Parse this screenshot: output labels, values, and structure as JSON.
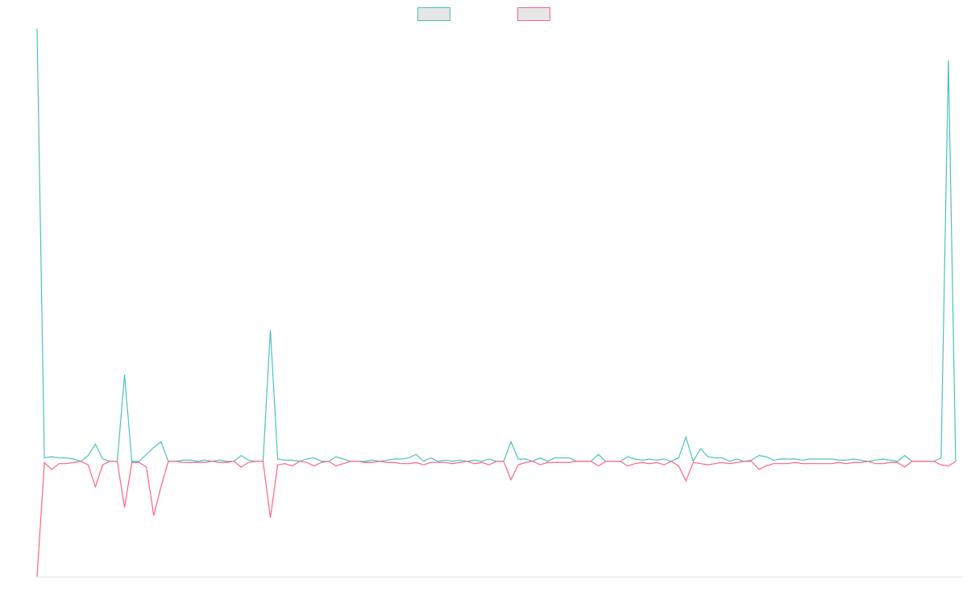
{
  "chart_data": {
    "type": "line",
    "title": "",
    "xlabel": "",
    "ylabel": "",
    "legend_position": "top-center",
    "grid": false,
    "x_range": [
      0,
      127
    ],
    "ylim": [
      -1.0,
      3.75
    ],
    "series": [
      {
        "color": "#4bc0c0",
        "fill": "#e6e6e6",
        "values": [
          3.75,
          0.03,
          0.04,
          0.03,
          0.03,
          0.02,
          0.0,
          0.05,
          0.15,
          0.02,
          0.0,
          0.0,
          0.75,
          0.0,
          0.0,
          0.06,
          0.12,
          0.17,
          0.0,
          0.0,
          0.01,
          0.01,
          0.0,
          0.01,
          0.0,
          0.01,
          0.0,
          0.0,
          0.05,
          0.01,
          0.0,
          0.0,
          1.14,
          0.02,
          0.01,
          0.01,
          0.0,
          0.02,
          0.03,
          0.0,
          0.0,
          0.04,
          0.02,
          0.0,
          0.0,
          0.0,
          0.01,
          0.0,
          0.01,
          0.02,
          0.02,
          0.03,
          0.06,
          0.0,
          0.03,
          0.0,
          0.01,
          0.0,
          0.01,
          0.0,
          0.01,
          0.0,
          0.02,
          0.0,
          0.0,
          0.17,
          0.02,
          0.02,
          0.0,
          0.03,
          0.0,
          0.03,
          0.03,
          0.03,
          0.0,
          0.0,
          0.0,
          0.06,
          0.0,
          0.0,
          0.0,
          0.04,
          0.02,
          0.01,
          0.02,
          0.01,
          0.02,
          0.0,
          0.03,
          0.21,
          0.0,
          0.11,
          0.04,
          0.03,
          0.03,
          0.0,
          0.02,
          0.0,
          0.01,
          0.05,
          0.04,
          0.01,
          0.02,
          0.02,
          0.02,
          0.01,
          0.02,
          0.02,
          0.02,
          0.02,
          0.01,
          0.01,
          0.02,
          0.01,
          0.0,
          0.01,
          0.02,
          0.01,
          0.0,
          0.05,
          0.0,
          0.0,
          0.0,
          0.0,
          0.03,
          3.48,
          0.0
        ]
      },
      {
        "color": "#ff6384",
        "fill": "#e6e6e6",
        "values": [
          -1.0,
          -0.01,
          -0.07,
          -0.02,
          -0.02,
          -0.01,
          0.0,
          -0.03,
          -0.22,
          -0.03,
          0.0,
          0.0,
          -0.4,
          -0.01,
          -0.01,
          -0.05,
          -0.47,
          -0.22,
          0.0,
          0.0,
          -0.01,
          -0.01,
          -0.01,
          -0.01,
          0.0,
          -0.01,
          -0.01,
          0.0,
          -0.05,
          -0.01,
          0.0,
          0.0,
          -0.49,
          -0.03,
          -0.02,
          -0.04,
          0.0,
          -0.01,
          -0.04,
          -0.01,
          0.0,
          -0.04,
          -0.02,
          0.0,
          0.0,
          -0.01,
          -0.01,
          0.0,
          -0.01,
          -0.01,
          -0.02,
          -0.02,
          -0.01,
          -0.03,
          -0.01,
          -0.01,
          -0.01,
          -0.02,
          -0.01,
          0.0,
          -0.02,
          -0.01,
          -0.03,
          0.0,
          0.0,
          -0.16,
          -0.03,
          -0.01,
          0.0,
          -0.03,
          -0.01,
          -0.01,
          -0.01,
          -0.01,
          0.0,
          0.0,
          0.0,
          -0.04,
          0.0,
          0.0,
          0.0,
          -0.04,
          -0.02,
          -0.01,
          -0.02,
          -0.01,
          -0.03,
          0.0,
          -0.04,
          -0.17,
          -0.01,
          -0.02,
          -0.03,
          -0.02,
          -0.01,
          -0.02,
          -0.01,
          0.0,
          0.0,
          -0.07,
          -0.04,
          -0.02,
          -0.02,
          -0.02,
          -0.01,
          -0.02,
          -0.02,
          -0.02,
          -0.02,
          -0.02,
          -0.01,
          -0.02,
          -0.01,
          -0.01,
          0.0,
          -0.02,
          -0.02,
          -0.01,
          -0.01,
          -0.05,
          0.0,
          0.0,
          0.0,
          0.0,
          -0.03,
          -0.04,
          0.0
        ]
      }
    ]
  }
}
